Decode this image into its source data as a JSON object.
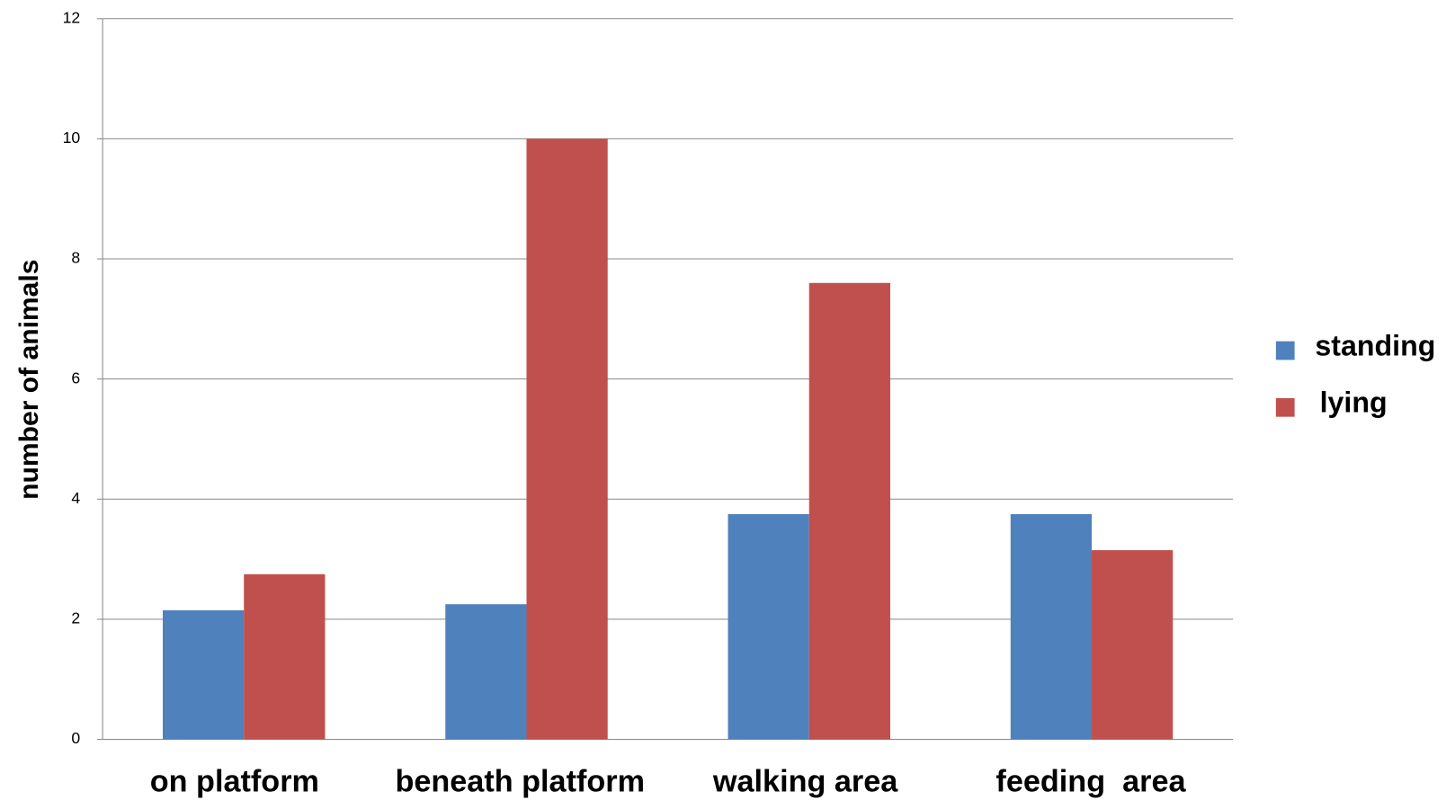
{
  "chart_data": {
    "type": "bar",
    "y_label": "number of animals",
    "categories": [
      "on platform",
      "beneath platform",
      "walking area",
      "feeding  area"
    ],
    "series": [
      {
        "name": "standing",
        "color": "#4f81bd",
        "values": [
          2.15,
          2.25,
          3.75,
          3.75
        ]
      },
      {
        "name": "lying",
        "color": "#c0504d",
        "values": [
          2.75,
          10,
          7.6,
          3.15
        ]
      }
    ],
    "ylim": [
      0,
      12
    ],
    "yticks": [
      0,
      2,
      4,
      6,
      8,
      10,
      12
    ],
    "grid": true,
    "legend": "right"
  }
}
